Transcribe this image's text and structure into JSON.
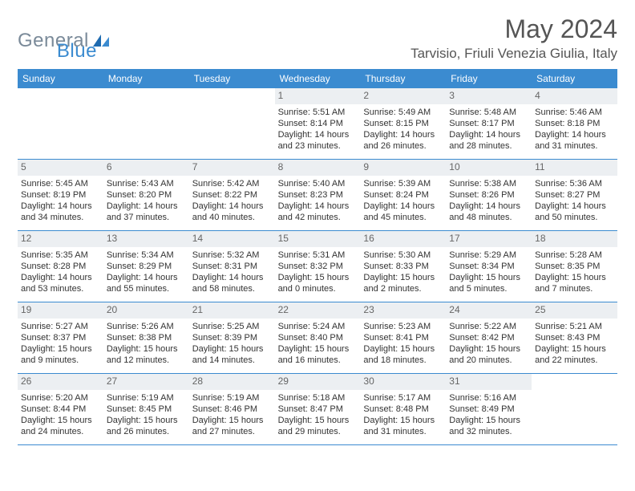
{
  "logo": {
    "text1": "General",
    "text2": "Blue"
  },
  "title": "May 2024",
  "location": "Tarvisio, Friuli Venezia Giulia, Italy",
  "colors": {
    "header_bg": "#3b8bd0",
    "header_text": "#ffffff",
    "daynum_bg": "#eceff2",
    "daynum_text": "#666666",
    "body_text": "#333333",
    "title_text": "#555555",
    "logo_gray": "#7a8a99",
    "logo_blue": "#3b8bd0",
    "row_border": "#3b8bd0"
  },
  "layout": {
    "columns": 7,
    "rows": 5,
    "font_family": "Arial",
    "cell_font_size": 11,
    "weekday_font_size": 12,
    "title_font_size": 32,
    "location_font_size": 17
  },
  "weekdays": [
    "Sunday",
    "Monday",
    "Tuesday",
    "Wednesday",
    "Thursday",
    "Friday",
    "Saturday"
  ],
  "weeks": [
    [
      {
        "n": "",
        "sr": "",
        "ss": "",
        "dl": ""
      },
      {
        "n": "",
        "sr": "",
        "ss": "",
        "dl": ""
      },
      {
        "n": "",
        "sr": "",
        "ss": "",
        "dl": ""
      },
      {
        "n": "1",
        "sr": "5:51 AM",
        "ss": "8:14 PM",
        "dl": "14 hours and 23 minutes."
      },
      {
        "n": "2",
        "sr": "5:49 AM",
        "ss": "8:15 PM",
        "dl": "14 hours and 26 minutes."
      },
      {
        "n": "3",
        "sr": "5:48 AM",
        "ss": "8:17 PM",
        "dl": "14 hours and 28 minutes."
      },
      {
        "n": "4",
        "sr": "5:46 AM",
        "ss": "8:18 PM",
        "dl": "14 hours and 31 minutes."
      }
    ],
    [
      {
        "n": "5",
        "sr": "5:45 AM",
        "ss": "8:19 PM",
        "dl": "14 hours and 34 minutes."
      },
      {
        "n": "6",
        "sr": "5:43 AM",
        "ss": "8:20 PM",
        "dl": "14 hours and 37 minutes."
      },
      {
        "n": "7",
        "sr": "5:42 AM",
        "ss": "8:22 PM",
        "dl": "14 hours and 40 minutes."
      },
      {
        "n": "8",
        "sr": "5:40 AM",
        "ss": "8:23 PM",
        "dl": "14 hours and 42 minutes."
      },
      {
        "n": "9",
        "sr": "5:39 AM",
        "ss": "8:24 PM",
        "dl": "14 hours and 45 minutes."
      },
      {
        "n": "10",
        "sr": "5:38 AM",
        "ss": "8:26 PM",
        "dl": "14 hours and 48 minutes."
      },
      {
        "n": "11",
        "sr": "5:36 AM",
        "ss": "8:27 PM",
        "dl": "14 hours and 50 minutes."
      }
    ],
    [
      {
        "n": "12",
        "sr": "5:35 AM",
        "ss": "8:28 PM",
        "dl": "14 hours and 53 minutes."
      },
      {
        "n": "13",
        "sr": "5:34 AM",
        "ss": "8:29 PM",
        "dl": "14 hours and 55 minutes."
      },
      {
        "n": "14",
        "sr": "5:32 AM",
        "ss": "8:31 PM",
        "dl": "14 hours and 58 minutes."
      },
      {
        "n": "15",
        "sr": "5:31 AM",
        "ss": "8:32 PM",
        "dl": "15 hours and 0 minutes."
      },
      {
        "n": "16",
        "sr": "5:30 AM",
        "ss": "8:33 PM",
        "dl": "15 hours and 2 minutes."
      },
      {
        "n": "17",
        "sr": "5:29 AM",
        "ss": "8:34 PM",
        "dl": "15 hours and 5 minutes."
      },
      {
        "n": "18",
        "sr": "5:28 AM",
        "ss": "8:35 PM",
        "dl": "15 hours and 7 minutes."
      }
    ],
    [
      {
        "n": "19",
        "sr": "5:27 AM",
        "ss": "8:37 PM",
        "dl": "15 hours and 9 minutes."
      },
      {
        "n": "20",
        "sr": "5:26 AM",
        "ss": "8:38 PM",
        "dl": "15 hours and 12 minutes."
      },
      {
        "n": "21",
        "sr": "5:25 AM",
        "ss": "8:39 PM",
        "dl": "15 hours and 14 minutes."
      },
      {
        "n": "22",
        "sr": "5:24 AM",
        "ss": "8:40 PM",
        "dl": "15 hours and 16 minutes."
      },
      {
        "n": "23",
        "sr": "5:23 AM",
        "ss": "8:41 PM",
        "dl": "15 hours and 18 minutes."
      },
      {
        "n": "24",
        "sr": "5:22 AM",
        "ss": "8:42 PM",
        "dl": "15 hours and 20 minutes."
      },
      {
        "n": "25",
        "sr": "5:21 AM",
        "ss": "8:43 PM",
        "dl": "15 hours and 22 minutes."
      }
    ],
    [
      {
        "n": "26",
        "sr": "5:20 AM",
        "ss": "8:44 PM",
        "dl": "15 hours and 24 minutes."
      },
      {
        "n": "27",
        "sr": "5:19 AM",
        "ss": "8:45 PM",
        "dl": "15 hours and 26 minutes."
      },
      {
        "n": "28",
        "sr": "5:19 AM",
        "ss": "8:46 PM",
        "dl": "15 hours and 27 minutes."
      },
      {
        "n": "29",
        "sr": "5:18 AM",
        "ss": "8:47 PM",
        "dl": "15 hours and 29 minutes."
      },
      {
        "n": "30",
        "sr": "5:17 AM",
        "ss": "8:48 PM",
        "dl": "15 hours and 31 minutes."
      },
      {
        "n": "31",
        "sr": "5:16 AM",
        "ss": "8:49 PM",
        "dl": "15 hours and 32 minutes."
      },
      {
        "n": "",
        "sr": "",
        "ss": "",
        "dl": ""
      }
    ]
  ],
  "labels": {
    "sunrise": "Sunrise:",
    "sunset": "Sunset:",
    "daylight": "Daylight:"
  }
}
